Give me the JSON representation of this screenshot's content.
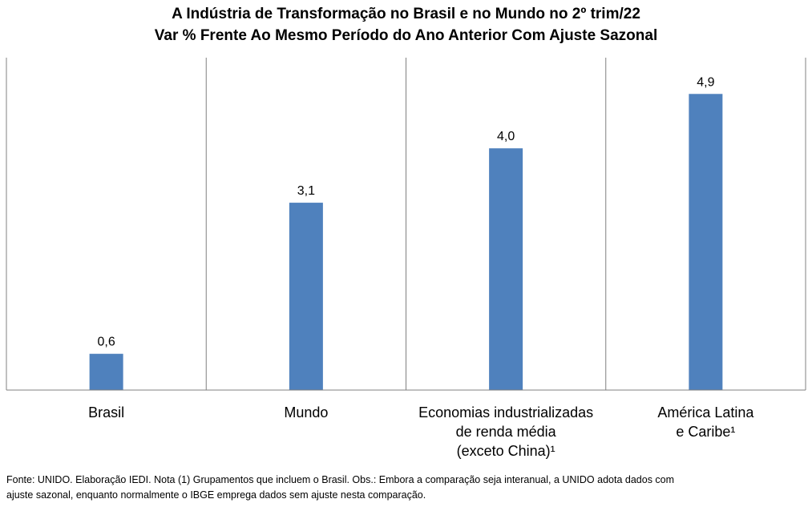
{
  "title_line1": "A Indústria de Transformação no Brasil e no Mundo no 2º trim/22",
  "title_line2": "Var % Frente Ao Mesmo Período do Ano Anterior Com Ajuste Sazonal",
  "footnote_line1": "Fonte: UNIDO. Elaboração IEDI. Nota (1) Grupamentos  que incluem o Brasil. Obs.: Embora a comparação seja interanual, a UNIDO adota dados com",
  "footnote_line2": "ajuste sazonal, enquanto  normalmente  o IBGE emprega dados sem ajuste nesta comparação.",
  "chart_data": {
    "type": "bar",
    "title": "A Indústria de Transformação no Brasil e no Mundo no 2º trim/22 — Var % Frente Ao Mesmo Período do Ano Anterior Com Ajuste Sazonal",
    "categories": [
      [
        "Brasil"
      ],
      [
        "Mundo"
      ],
      [
        "Economias industrializadas",
        "de renda média",
        "(exceto China)¹"
      ],
      [
        "América Latina",
        "e Caribe¹"
      ]
    ],
    "values": [
      0.6,
      3.1,
      4.0,
      4.9
    ],
    "value_labels": [
      "0,6",
      "3,1",
      "4,0",
      "4,9"
    ],
    "ylim": [
      0,
      5.5
    ],
    "grid": false,
    "bar_color": "#4F81BD",
    "separator_color": "#808080"
  }
}
